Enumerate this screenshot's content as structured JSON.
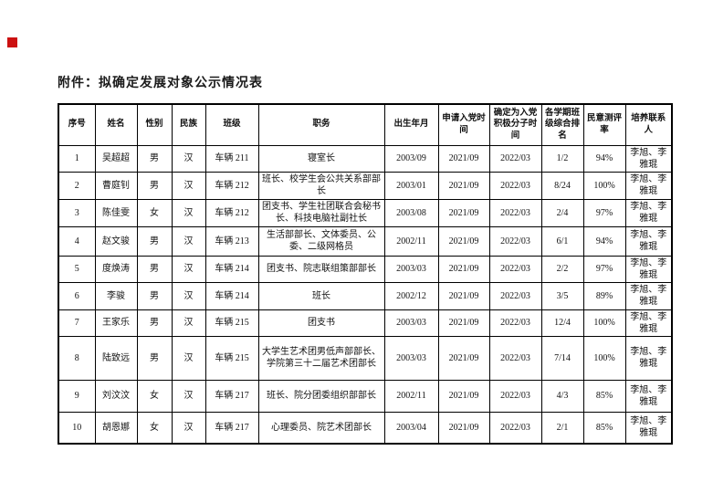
{
  "page": {
    "attachment_title": "附件：拟确定发展对象公示情况表"
  },
  "marker": {
    "color": "#cc1111"
  },
  "table": {
    "headers": [
      "序号",
      "姓名",
      "性别",
      "民族",
      "班级",
      "职务",
      "出生年月",
      "申请入党时间",
      "确定为入党积极分子时间",
      "各学期班级综合排名",
      "民意测评率",
      "培养联系人"
    ],
    "rows": [
      [
        "1",
        "吴超超",
        "男",
        "汉",
        "车辆 211",
        "寝室长",
        "2003/09",
        "2021/09",
        "2022/03",
        "1/2",
        "94%",
        "李旭、李雅琨"
      ],
      [
        "2",
        "曹庭钊",
        "男",
        "汉",
        "车辆 212",
        "班长、校学生会公共关系部部长",
        "2003/01",
        "2021/09",
        "2022/03",
        "8/24",
        "100%",
        "李旭、李雅琨"
      ],
      [
        "3",
        "陈佳雯",
        "女",
        "汉",
        "车辆 212",
        "团支书、学生社团联合会秘书长、科技电脑社副社长",
        "2003/08",
        "2021/09",
        "2022/03",
        "2/4",
        "97%",
        "李旭、李雅琨"
      ],
      [
        "4",
        "赵文骏",
        "男",
        "汉",
        "车辆 213",
        "生活部部长、文体委员、公委、二级网格员",
        "2002/11",
        "2021/09",
        "2022/03",
        "6/1",
        "94%",
        "李旭、李雅琨"
      ],
      [
        "5",
        "度焕涛",
        "男",
        "汉",
        "车辆 214",
        "团支书、院志联组策部部长",
        "2003/03",
        "2021/09",
        "2022/03",
        "2/2",
        "97%",
        "李旭、李雅琨"
      ],
      [
        "6",
        "李骏",
        "男",
        "汉",
        "车辆 214",
        "班长",
        "2002/12",
        "2021/09",
        "2022/03",
        "3/5",
        "89%",
        "李旭、李雅琨"
      ],
      [
        "7",
        "王家乐",
        "男",
        "汉",
        "车辆 215",
        "团支书",
        "2003/03",
        "2021/09",
        "2022/03",
        "12/4",
        "100%",
        "李旭、李雅琨"
      ],
      [
        "8",
        "陆致远",
        "男",
        "汉",
        "车辆 215",
        "大学生艺术团男低声部部长、学院第三十二届艺术团部长",
        "2003/03",
        "2021/09",
        "2022/03",
        "7/14",
        "100%",
        "李旭、李雅琨"
      ],
      [
        "9",
        "刘汶汶",
        "女",
        "汉",
        "车辆 217",
        "班长、院分团委组织部部长",
        "2002/11",
        "2021/09",
        "2022/03",
        "4/3",
        "85%",
        "李旭、李雅琨"
      ],
      [
        "10",
        "胡恩娜",
        "女",
        "汉",
        "车辆 217",
        "心理委员、院艺术团部长",
        "2003/04",
        "2021/09",
        "2022/03",
        "2/1",
        "85%",
        "李旭、李雅琨"
      ]
    ]
  }
}
